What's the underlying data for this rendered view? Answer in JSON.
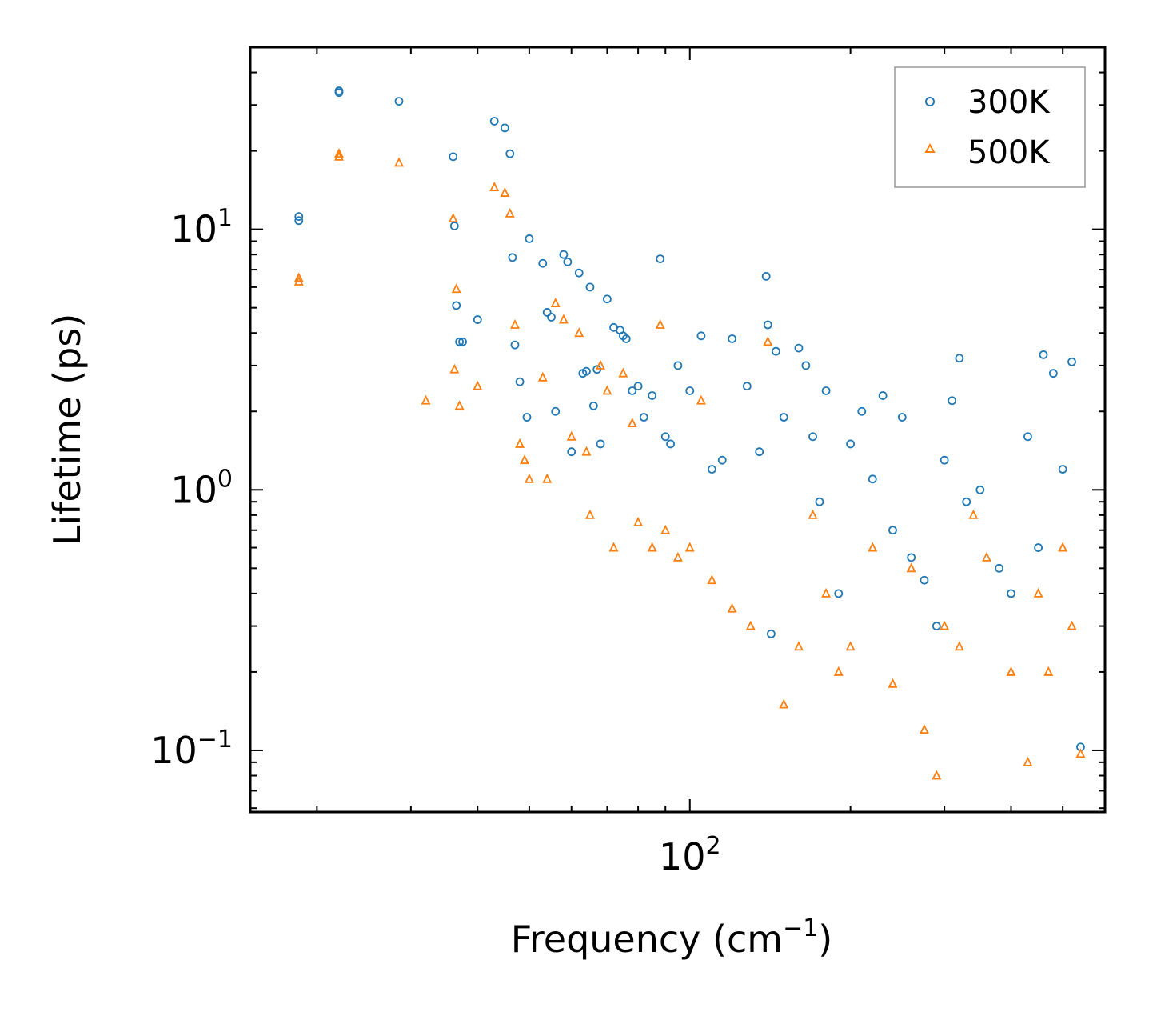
{
  "chart_data": {
    "type": "scatter",
    "title": "",
    "xlabel": {
      "main": "Frequency (cm",
      "sup": "−1",
      "tail": ")"
    },
    "ylabel": "Lifetime (ps)",
    "xscale": "log",
    "yscale": "log",
    "xlim": [
      15,
      600
    ],
    "ylim": [
      0.058,
      50
    ],
    "x_ticks": [
      {
        "value": 100,
        "base": "10",
        "exp": "2"
      }
    ],
    "y_ticks": [
      {
        "value": 0.1,
        "base": "10",
        "exp": "−1"
      },
      {
        "value": 1,
        "base": "10",
        "exp": "0"
      },
      {
        "value": 10,
        "base": "10",
        "exp": "1"
      }
    ],
    "legend_position": "top-right",
    "series": [
      {
        "name": "300K",
        "color": "#1f77b4",
        "marker": "circle",
        "x": [
          18.5,
          18.5,
          22.0,
          22.0,
          28.5,
          36.0,
          36.2,
          36.5,
          37.0,
          37.5,
          40.0,
          43.0,
          45.0,
          46.0,
          46.5,
          47.0,
          48.0,
          49.5,
          50.0,
          53.0,
          54.0,
          55.0,
          56.0,
          58.0,
          59.0,
          60.0,
          62.0,
          63.0,
          64.0,
          65.0,
          66.0,
          67.0,
          68.0,
          70.0,
          72.0,
          74.0,
          75.0,
          76.0,
          78.0,
          80.0,
          82.0,
          85.0,
          88.0,
          90.0,
          92.0,
          95.0,
          100.0,
          105.0,
          110.0,
          115.0,
          120.0,
          128.0,
          135.0,
          139.0,
          140.0,
          142.0,
          145.0,
          150.0,
          160.0,
          165.0,
          170.0,
          175.0,
          180.0,
          190.0,
          200.0,
          210.0,
          220.0,
          230.0,
          240.0,
          250.0,
          260.0,
          275.0,
          290.0,
          300.0,
          310.0,
          320.0,
          330.0,
          350.0,
          380.0,
          400.0,
          430.0,
          450.0,
          460.0,
          480.0,
          500.0,
          520.0,
          540.0
        ],
        "y": [
          11.2,
          10.8,
          34.0,
          33.5,
          31.0,
          19.0,
          10.3,
          5.1,
          3.7,
          3.7,
          4.5,
          26.0,
          24.5,
          19.5,
          7.8,
          3.6,
          2.6,
          1.9,
          9.2,
          7.4,
          4.8,
          4.6,
          2.0,
          8.0,
          7.5,
          1.4,
          6.8,
          2.8,
          2.85,
          6.0,
          2.1,
          2.9,
          1.5,
          5.4,
          4.2,
          4.1,
          3.9,
          3.8,
          2.4,
          2.5,
          1.9,
          2.3,
          7.7,
          1.6,
          1.5,
          3.0,
          2.4,
          3.9,
          1.2,
          1.3,
          3.8,
          2.5,
          1.4,
          6.6,
          4.3,
          0.28,
          3.4,
          1.9,
          3.5,
          3.0,
          1.6,
          0.9,
          2.4,
          0.4,
          1.5,
          2.0,
          1.1,
          2.3,
          0.7,
          1.9,
          0.55,
          0.45,
          0.3,
          1.3,
          2.2,
          3.2,
          0.9,
          1.0,
          0.5,
          0.4,
          1.6,
          0.6,
          3.3,
          2.8,
          1.2,
          3.1,
          0.103
        ]
      },
      {
        "name": "500K",
        "color": "#ff7f0e",
        "marker": "triangle",
        "x": [
          18.5,
          18.5,
          22.0,
          22.0,
          28.5,
          32.0,
          36.0,
          36.2,
          36.5,
          37.0,
          40.0,
          43.0,
          45.0,
          46.0,
          47.0,
          48.0,
          49.0,
          50.0,
          53.0,
          54.0,
          56.0,
          58.0,
          60.0,
          62.0,
          64.0,
          65.0,
          68.0,
          70.0,
          72.0,
          75.0,
          78.0,
          80.0,
          85.0,
          88.0,
          90.0,
          95.0,
          100.0,
          105.0,
          110.0,
          120.0,
          130.0,
          140.0,
          150.0,
          160.0,
          170.0,
          180.0,
          190.0,
          200.0,
          220.0,
          240.0,
          260.0,
          275.0,
          290.0,
          300.0,
          320.0,
          340.0,
          360.0,
          400.0,
          430.0,
          450.0,
          470.0,
          500.0,
          520.0,
          540.0
        ],
        "y": [
          6.5,
          6.3,
          19.5,
          19.0,
          18.0,
          2.2,
          11.0,
          2.9,
          5.9,
          2.1,
          2.5,
          14.5,
          13.8,
          11.5,
          4.3,
          1.5,
          1.3,
          1.1,
          2.7,
          1.1,
          5.2,
          4.5,
          1.6,
          4.0,
          1.4,
          0.8,
          3.0,
          2.4,
          0.6,
          2.8,
          1.8,
          0.75,
          0.6,
          4.3,
          0.7,
          0.55,
          0.6,
          2.2,
          0.45,
          0.35,
          0.3,
          3.7,
          0.15,
          0.25,
          0.8,
          0.4,
          0.2,
          0.25,
          0.6,
          0.18,
          0.5,
          0.12,
          0.08,
          0.3,
          0.25,
          0.8,
          0.55,
          0.2,
          0.09,
          0.4,
          0.2,
          0.6,
          0.3,
          0.097
        ]
      }
    ]
  }
}
